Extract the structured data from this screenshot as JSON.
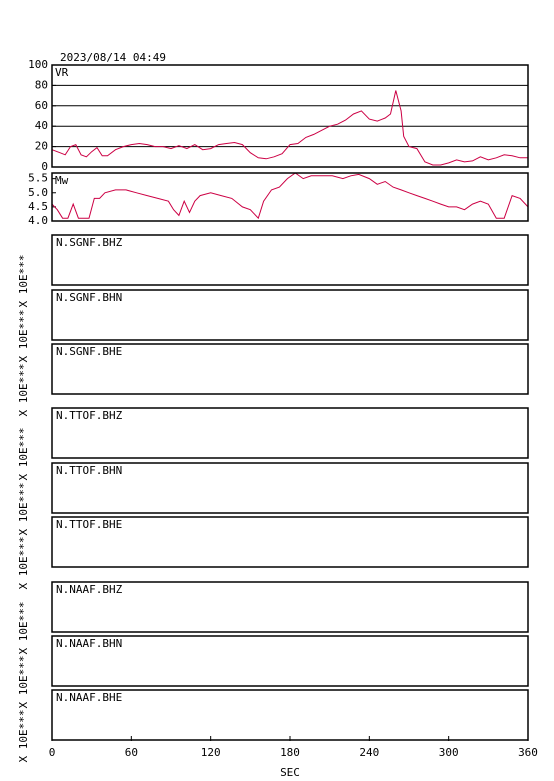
{
  "date": "2023/08/14 04:49",
  "x_axis": {
    "label": "SEC",
    "xlim": [
      0,
      360
    ],
    "xticks": [
      0,
      60,
      120,
      180,
      240,
      300,
      360
    ]
  },
  "chart_data": [
    {
      "type": "line",
      "name": "VR",
      "color": "#cc0044",
      "grid": true,
      "ylim": [
        0,
        100
      ],
      "yticks": [
        0,
        20,
        40,
        60,
        80,
        100
      ],
      "x": [
        0,
        6,
        10,
        14,
        18,
        22,
        26,
        30,
        34,
        38,
        42,
        48,
        54,
        60,
        66,
        72,
        78,
        84,
        90,
        96,
        102,
        108,
        114,
        120,
        126,
        132,
        138,
        144,
        150,
        156,
        162,
        168,
        174,
        180,
        186,
        192,
        198,
        204,
        210,
        216,
        222,
        228,
        234,
        240,
        246,
        252,
        256,
        260,
        264,
        266,
        270,
        276,
        282,
        288,
        294,
        300,
        306,
        312,
        318,
        324,
        330,
        336,
        342,
        348,
        354,
        360
      ],
      "values": [
        17,
        14,
        12,
        20,
        22,
        12,
        10,
        15,
        19,
        11,
        11,
        17,
        20,
        22,
        23,
        22,
        20,
        20,
        18,
        21,
        18,
        22,
        17,
        18,
        22,
        23,
        24,
        22,
        14,
        9,
        8,
        10,
        13,
        22,
        23,
        29,
        32,
        36,
        40,
        42,
        46,
        52,
        55,
        47,
        45,
        48,
        52,
        75,
        55,
        30,
        20,
        18,
        5,
        2,
        2,
        4,
        7,
        5,
        6,
        10,
        7,
        9,
        12,
        11,
        9,
        9
      ]
    },
    {
      "type": "line",
      "name": "Mw",
      "color": "#cc0044",
      "grid": false,
      "ylim": [
        4.0,
        5.7
      ],
      "yticks": [
        {
          "value": 4,
          "label": "4.0"
        },
        4.5,
        {
          "value": 5,
          "label": "5.0"
        },
        5.5
      ],
      "x": [
        0,
        4,
        8,
        12,
        16,
        20,
        24,
        28,
        32,
        36,
        40,
        48,
        56,
        64,
        72,
        80,
        88,
        92,
        96,
        100,
        104,
        108,
        112,
        120,
        128,
        136,
        144,
        150,
        156,
        160,
        166,
        172,
        178,
        184,
        190,
        196,
        204,
        212,
        220,
        226,
        232,
        240,
        246,
        252,
        258,
        264,
        270,
        276,
        282,
        288,
        294,
        300,
        306,
        312,
        318,
        324,
        330,
        336,
        342,
        348,
        354,
        360
      ],
      "values": [
        4.6,
        4.4,
        4.1,
        4.1,
        4.6,
        4.1,
        4.1,
        4.1,
        4.8,
        4.8,
        5.0,
        5.1,
        5.1,
        5.0,
        4.9,
        4.8,
        4.7,
        4.4,
        4.2,
        4.7,
        4.3,
        4.7,
        4.9,
        5.0,
        4.9,
        4.8,
        4.5,
        4.4,
        4.1,
        4.7,
        5.1,
        5.2,
        5.5,
        5.7,
        5.5,
        5.6,
        5.6,
        5.6,
        5.5,
        5.6,
        5.65,
        5.5,
        5.3,
        5.4,
        5.2,
        5.1,
        5.0,
        4.9,
        4.8,
        4.7,
        4.6,
        4.5,
        4.5,
        4.4,
        4.6,
        4.7,
        4.6,
        4.1,
        4.1,
        4.9,
        4.8,
        4.5
      ]
    }
  ],
  "panels": [
    {
      "label": "N.SGNF.BHZ",
      "scale_label": "X 10E***"
    },
    {
      "label": "N.SGNF.BHN",
      "scale_label": "X 10E***"
    },
    {
      "label": "N.SGNF.BHE",
      "scale_label": "X 10E***"
    },
    {
      "label": "N.TTOF.BHZ",
      "scale_label": "X 10E***"
    },
    {
      "label": "N.TTOF.BHN",
      "scale_label": "X 10E***"
    },
    {
      "label": "N.TTOF.BHE",
      "scale_label": "X 10E***"
    },
    {
      "label": "N.NAAF.BHZ",
      "scale_label": "X 10E***"
    },
    {
      "label": "N.NAAF.BHN",
      "scale_label": "X 10E***"
    },
    {
      "label": "N.NAAF.BHE",
      "scale_label": "X 10E***"
    }
  ]
}
